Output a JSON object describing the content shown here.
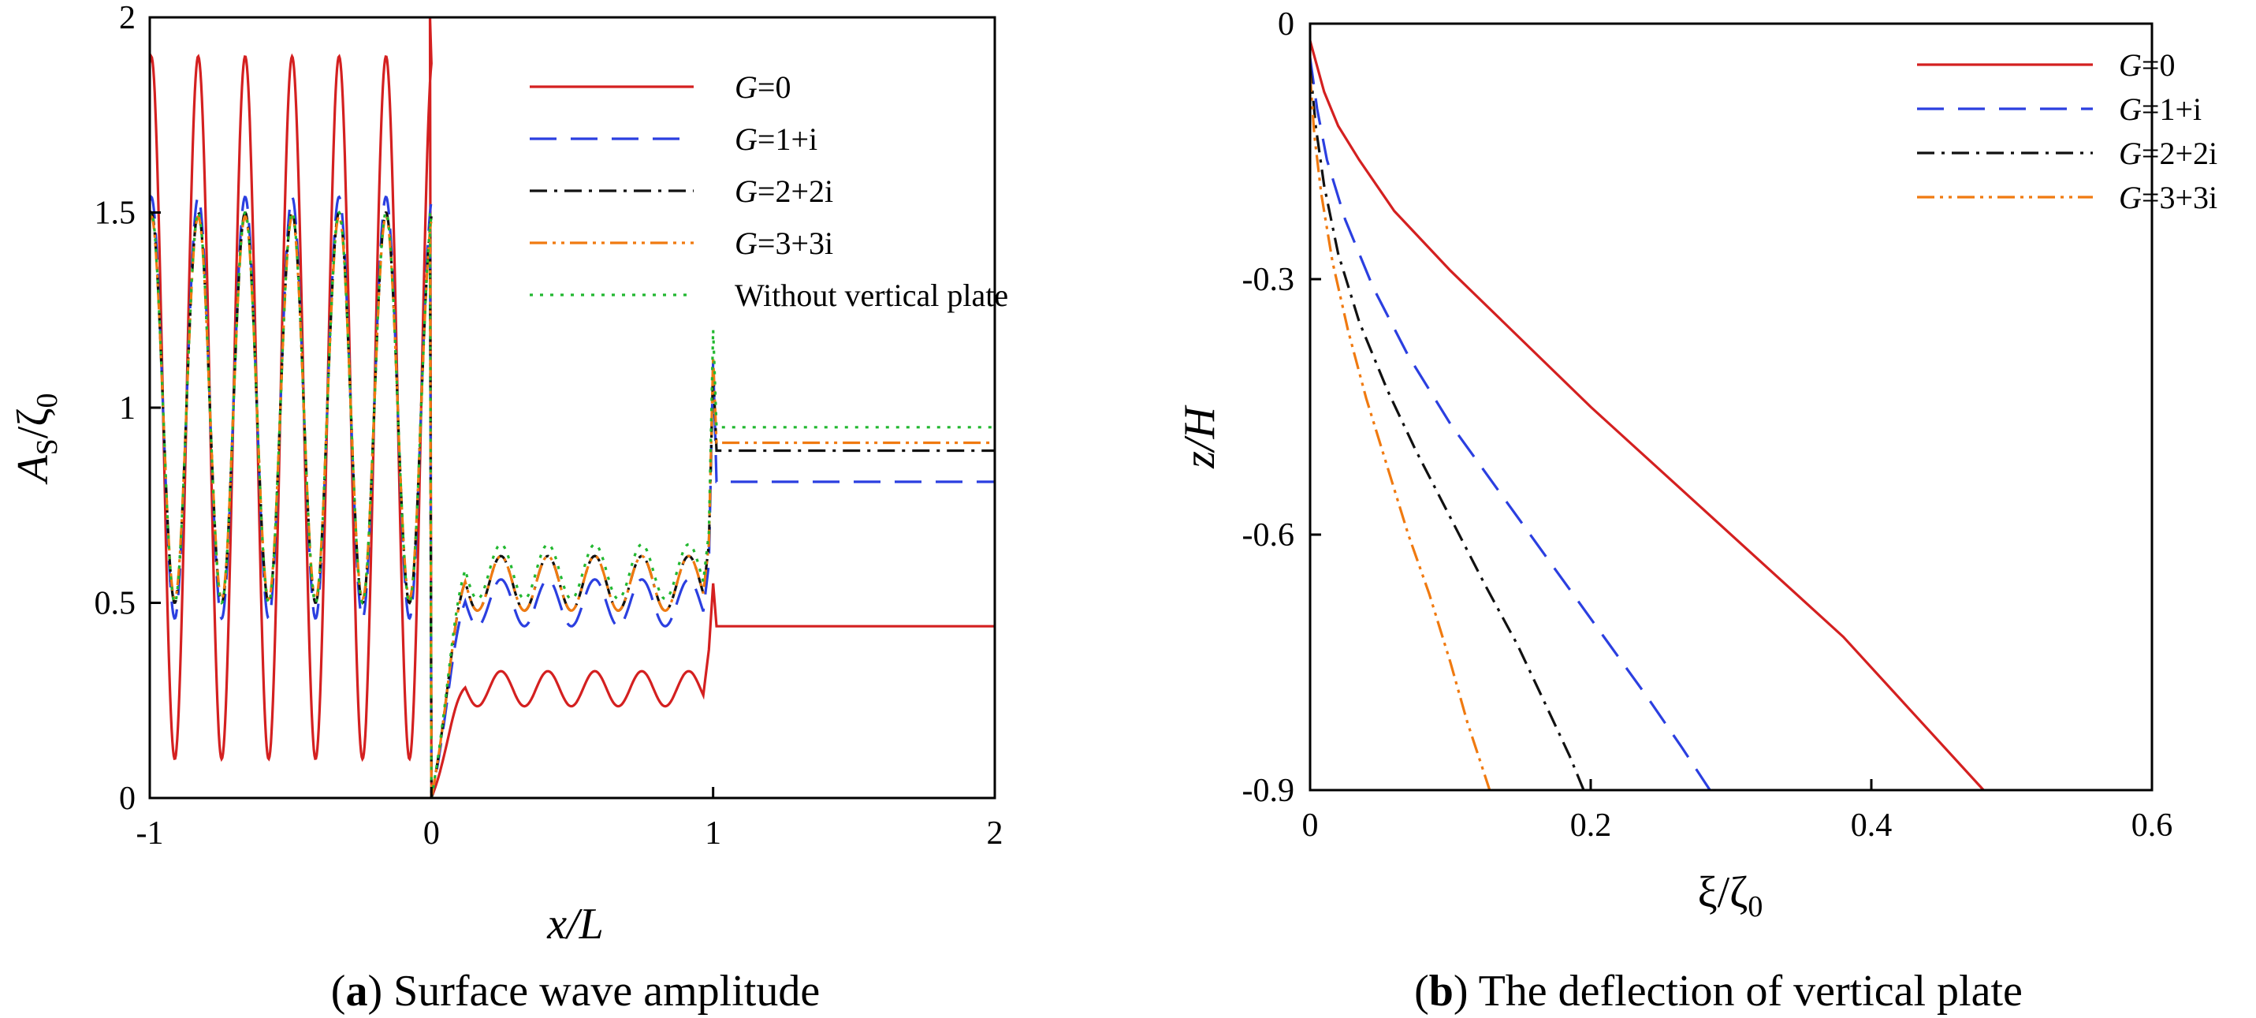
{
  "chart_data": [
    {
      "type": "line",
      "panel": "a",
      "caption_label": "a",
      "caption_text": "Surface wave amplitude",
      "xlabel": "x/L",
      "ylabel_main": "A",
      "ylabel_sub": "S",
      "ylabel_tail": "/ζ",
      "ylabel_tail_sub": "0",
      "xlim": [
        -1,
        2
      ],
      "ylim": [
        0,
        2
      ],
      "xticks": [
        -1,
        0,
        1,
        2
      ],
      "xtick_labels": [
        "-1",
        "0",
        "1",
        "2"
      ],
      "yticks": [
        0,
        0.5,
        1,
        1.5,
        2
      ],
      "ytick_labels": [
        "0",
        "0.5",
        "1",
        "1.5",
        "2"
      ],
      "legend_position": "top-right",
      "series": [
        {
          "name_italic": "G",
          "name_rest": "=0",
          "color": "#d42020",
          "dash": "solid",
          "upstream_mean": 1.0,
          "upstream_amp": 0.9,
          "upstream_peak_at_0": 2.0,
          "gap_mean": 0.28,
          "gap_amp": 0.045,
          "gap_jump": 0.55,
          "transmitted": 0.44
        },
        {
          "name_italic": "G",
          "name_rest": "=1+i",
          "color": "#2b3fe0",
          "dash": "long-dash",
          "upstream_mean": 1.0,
          "upstream_amp": 0.54,
          "upstream_peak_at_0": 1.52,
          "gap_mean": 0.5,
          "gap_amp": 0.06,
          "gap_jump": 1.12,
          "transmitted": 0.81
        },
        {
          "name_italic": "G",
          "name_rest": "=2+2i",
          "color": "#111111",
          "dash": "dash-dot",
          "upstream_mean": 1.0,
          "upstream_amp": 0.5,
          "upstream_peak_at_0": 1.48,
          "gap_mean": 0.55,
          "gap_amp": 0.07,
          "gap_jump": 1.1,
          "transmitted": 0.89
        },
        {
          "name_italic": "G",
          "name_rest": "=3+3i",
          "color": "#f07a10",
          "dash": "dash-dot-dot",
          "upstream_mean": 1.0,
          "upstream_amp": 0.49,
          "upstream_peak_at_0": 1.46,
          "gap_mean": 0.55,
          "gap_amp": 0.07,
          "gap_jump": 1.13,
          "transmitted": 0.91
        },
        {
          "name_italic": "",
          "name_rest": "Without vertical plate",
          "color": "#22b830",
          "dash": "dotted",
          "upstream_mean": 1.0,
          "upstream_amp": 0.5,
          "upstream_peak_at_0": 1.5,
          "gap_mean": 0.58,
          "gap_amp": 0.07,
          "gap_jump": 1.2,
          "transmitted": 0.95
        }
      ]
    },
    {
      "type": "line",
      "panel": "b",
      "caption_label": "b",
      "caption_text": "The deflection of vertical plate",
      "xlabel_main": "ξ/ζ",
      "xlabel_sub": "0",
      "ylabel": "z/H",
      "xlim": [
        0,
        0.6
      ],
      "ylim": [
        -0.9,
        0
      ],
      "xticks": [
        0,
        0.2,
        0.4,
        0.6
      ],
      "xtick_labels": [
        "0",
        "0.2",
        "0.4",
        "0.6"
      ],
      "yticks": [
        0,
        -0.3,
        -0.6,
        -0.9
      ],
      "ytick_labels": [
        "0",
        "-0.3",
        "-0.6",
        "-0.9"
      ],
      "legend_position": "top-right",
      "series": [
        {
          "name_italic": "G",
          "name_rest": "=0",
          "color": "#d42020",
          "dash": "solid",
          "x": [
            0,
            0.01,
            0.02,
            0.035,
            0.06,
            0.1,
            0.15,
            0.2,
            0.26,
            0.32,
            0.38,
            0.43,
            0.48
          ],
          "y": [
            -0.02,
            -0.08,
            -0.12,
            -0.16,
            -0.22,
            -0.29,
            -0.37,
            -0.45,
            -0.54,
            -0.63,
            -0.72,
            -0.81,
            -0.9
          ]
        },
        {
          "name_italic": "G",
          "name_rest": "=1+i",
          "color": "#2b3fe0",
          "dash": "long-dash",
          "x": [
            0,
            0.005,
            0.012,
            0.025,
            0.045,
            0.07,
            0.1,
            0.135,
            0.17,
            0.205,
            0.24,
            0.265,
            0.285
          ],
          "y": [
            -0.04,
            -0.1,
            -0.16,
            -0.23,
            -0.31,
            -0.39,
            -0.47,
            -0.55,
            -0.63,
            -0.71,
            -0.79,
            -0.85,
            -0.9
          ]
        },
        {
          "name_italic": "G",
          "name_rest": "=2+2i",
          "color": "#111111",
          "dash": "dash-dot",
          "x": [
            0,
            0.004,
            0.01,
            0.02,
            0.035,
            0.055,
            0.075,
            0.1,
            0.125,
            0.148,
            0.168,
            0.185,
            0.195
          ],
          "y": [
            -0.05,
            -0.12,
            -0.19,
            -0.27,
            -0.35,
            -0.43,
            -0.5,
            -0.58,
            -0.66,
            -0.73,
            -0.8,
            -0.86,
            -0.9
          ]
        },
        {
          "name_italic": "G",
          "name_rest": "=3+3i",
          "color": "#f07a10",
          "dash": "dash-dot-dot",
          "x": [
            0,
            0.003,
            0.008,
            0.016,
            0.027,
            0.04,
            0.055,
            0.07,
            0.085,
            0.1,
            0.112,
            0.122,
            0.128
          ],
          "y": [
            -0.06,
            -0.13,
            -0.2,
            -0.28,
            -0.36,
            -0.44,
            -0.52,
            -0.6,
            -0.67,
            -0.75,
            -0.82,
            -0.87,
            -0.9
          ]
        }
      ]
    }
  ]
}
